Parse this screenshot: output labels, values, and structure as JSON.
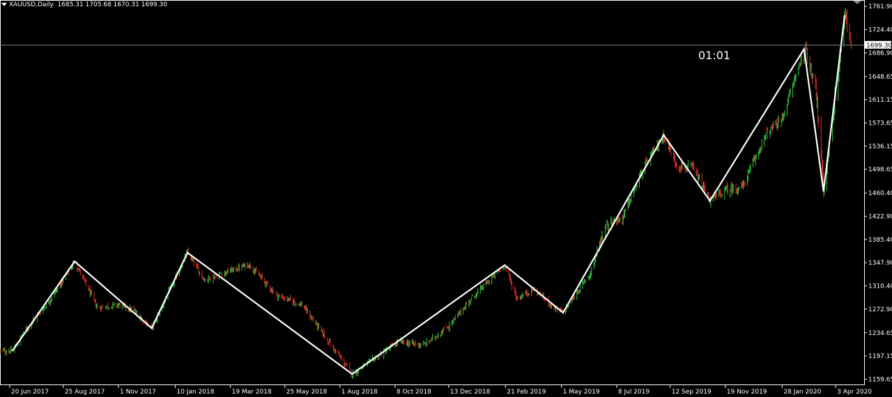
{
  "header": {
    "symbol_timeframe": "XAUUSD,Daily",
    "ohlc": "1685.31 1705.68 1670.31 1699.30"
  },
  "current_price_label": "1699.30",
  "timer": "01:01",
  "colors": {
    "background": "#000000",
    "frame": "#ffffff",
    "bull": "#2ecc40",
    "bear": "#e0312b",
    "zigzag": "#ffffff",
    "price_line": "#8a8a8a"
  },
  "chart_data": {
    "type": "candlestick",
    "symbol": "XAUUSD",
    "timeframe": "Daily",
    "ylim": [
      1150,
      1770
    ],
    "y_ticks": [
      "1761.90",
      "1724.40",
      "1686.90",
      "1648.65",
      "1611.15",
      "1573.65",
      "1536.15",
      "1498.65",
      "1460.40",
      "1422.90",
      "1385.40",
      "1347.90",
      "1310.40",
      "1272.90",
      "1234.65",
      "1197.15",
      "1159.65"
    ],
    "x_ticks": [
      "20 Jun 2017",
      "25 Aug 2017",
      "1 Nov 2017",
      "10 Jan 2018",
      "19 Mar 2018",
      "25 May 2018",
      "1 Aug 2018",
      "8 Oct 2018",
      "13 Dec 2018",
      "21 Feb 2019",
      "1 May 2019",
      "8 Jul 2019",
      "12 Sep 2019",
      "19 Nov 2019",
      "28 Jan 2020",
      "3 Apr 2020"
    ],
    "current_price": 1699.3,
    "zigzag_series": {
      "x": [
        "2017-06-23",
        "2017-09-08",
        "2017-12-12",
        "2018-01-25",
        "2018-08-16",
        "2019-02-20",
        "2019-05-03",
        "2019-09-04",
        "2019-10-31",
        "2020-02-24",
        "2020-03-19",
        "2020-04-14"
      ],
      "y": [
        1205,
        1350,
        1242,
        1364,
        1168,
        1344,
        1267,
        1554,
        1448,
        1693,
        1463,
        1748
      ]
    },
    "candle_price_path": {
      "x": [
        "2017-06-23",
        "2017-07-10",
        "2017-08-10",
        "2017-09-08",
        "2017-10-06",
        "2017-11-01",
        "2017-11-20",
        "2017-12-12",
        "2018-01-25",
        "2018-02-15",
        "2018-03-19",
        "2018-04-11",
        "2018-05-15",
        "2018-06-15",
        "2018-07-10",
        "2018-08-16",
        "2018-09-15",
        "2018-10-12",
        "2018-11-13",
        "2018-12-13",
        "2019-01-10",
        "2019-02-20",
        "2019-03-07",
        "2019-03-28",
        "2019-04-25",
        "2019-05-03",
        "2019-06-05",
        "2019-06-25",
        "2019-07-15",
        "2019-08-10",
        "2019-09-04",
        "2019-09-20",
        "2019-10-10",
        "2019-10-31",
        "2019-11-20",
        "2019-12-10",
        "2020-01-08",
        "2020-01-28",
        "2020-02-24",
        "2020-03-09",
        "2020-03-19",
        "2020-04-03",
        "2020-04-14",
        "2020-04-22"
      ],
      "y": [
        1205,
        1240,
        1290,
        1350,
        1275,
        1280,
        1270,
        1242,
        1364,
        1320,
        1335,
        1345,
        1295,
        1280,
        1235,
        1168,
        1195,
        1220,
        1215,
        1245,
        1290,
        1344,
        1290,
        1305,
        1272,
        1267,
        1330,
        1410,
        1420,
        1500,
        1554,
        1505,
        1500,
        1448,
        1465,
        1470,
        1555,
        1580,
        1693,
        1640,
        1463,
        1620,
        1748,
        1700
      ]
    }
  }
}
